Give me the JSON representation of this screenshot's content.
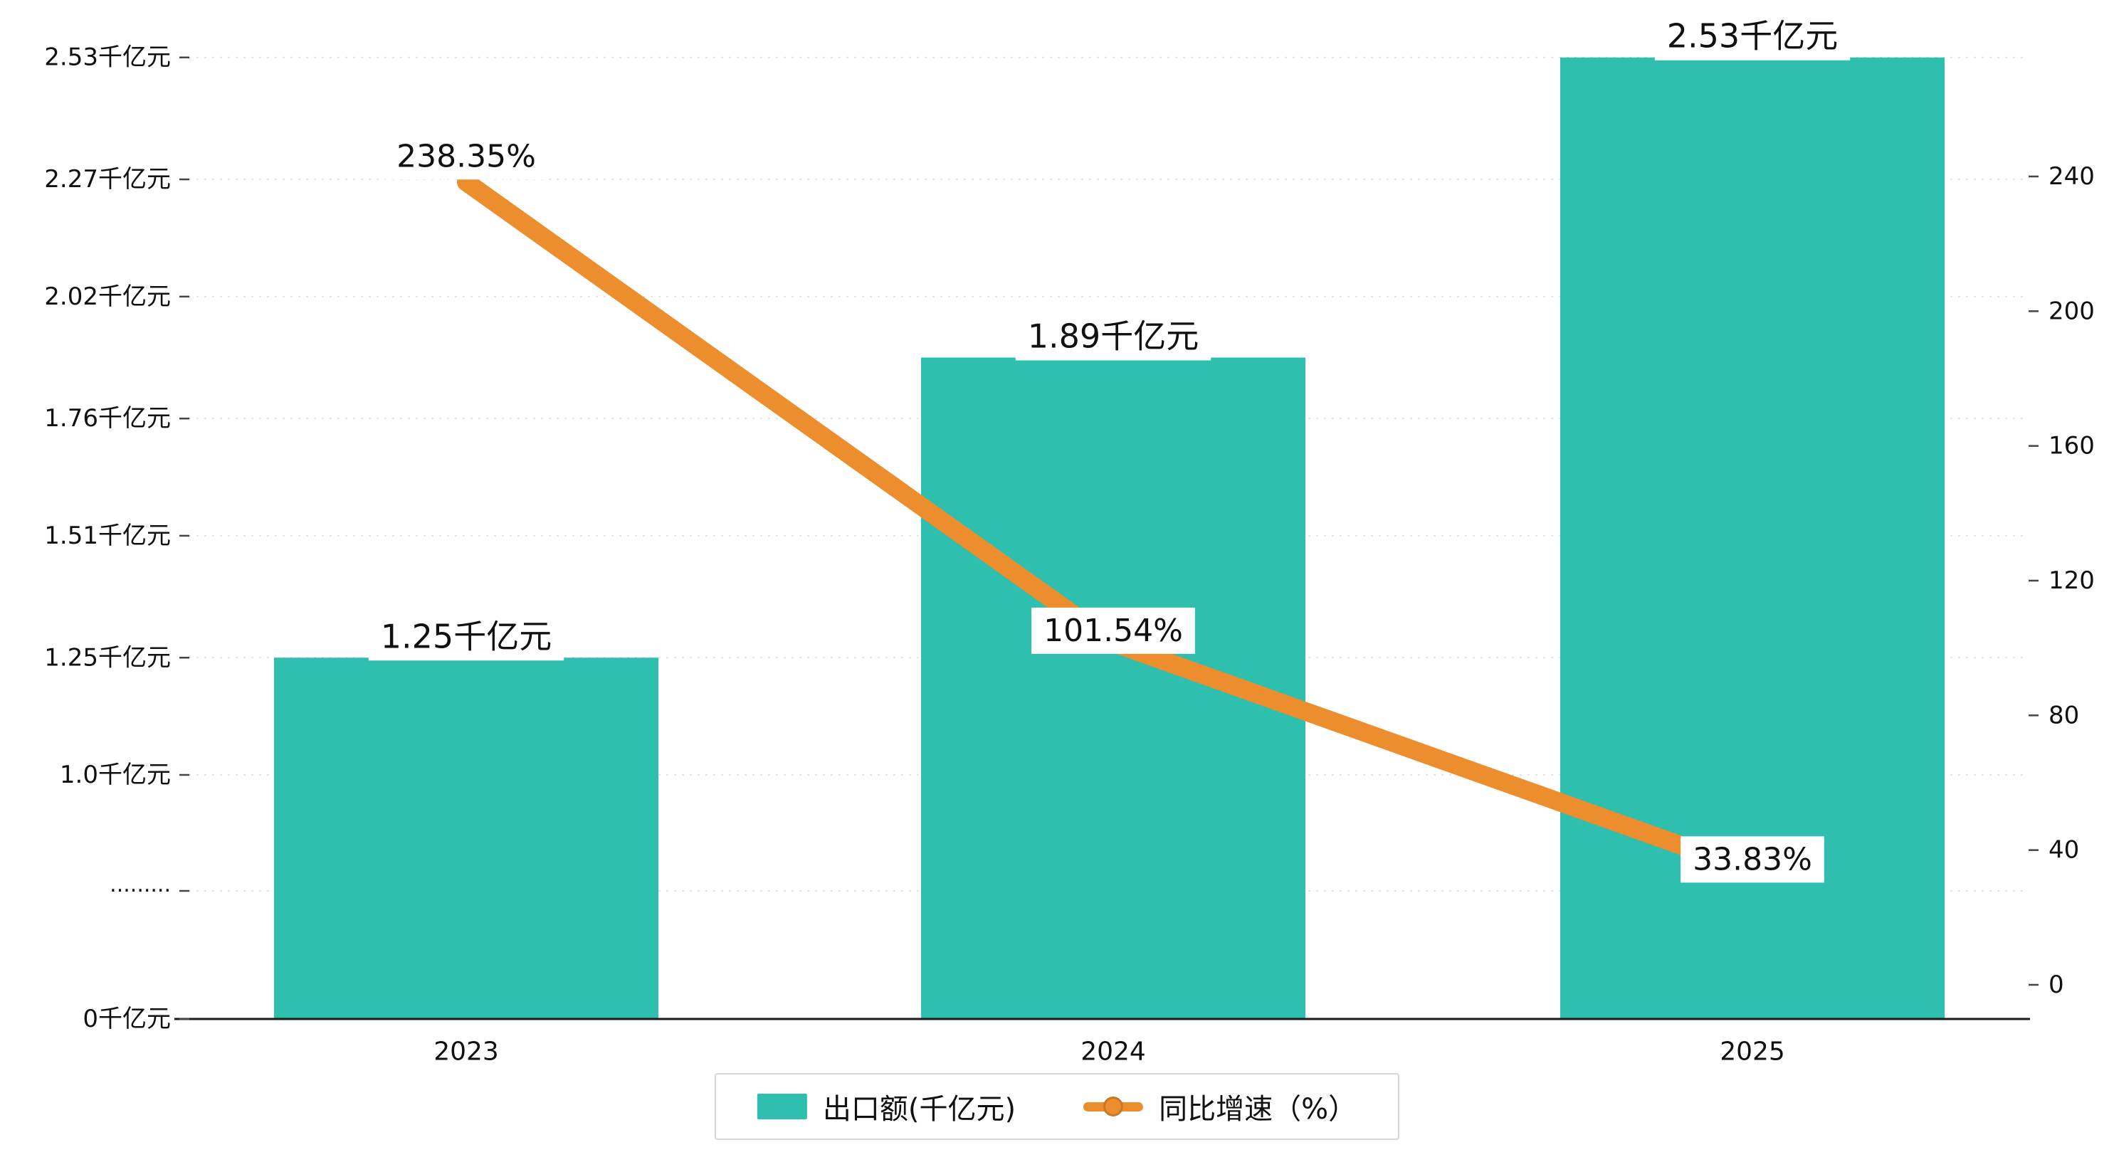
{
  "chart_data": {
    "type": "bar",
    "subtype": "bar+line combo",
    "title": "",
    "categories": [
      "2023",
      "2024",
      "2025"
    ],
    "bar_series": {
      "name": "出口额(千亿元)",
      "values": [
        1.25,
        1.89,
        2.53
      ],
      "value_labels": [
        "1.25千亿元",
        "1.89千亿元",
        "2.53千亿元"
      ],
      "color": "#2fbfae",
      "unit": "千亿元"
    },
    "line_series": {
      "name": "同比增速（%）",
      "values": [
        238.35,
        101.54,
        33.83
      ],
      "value_labels": [
        "238.35%",
        "101.54%",
        "33.83%"
      ],
      "color": "#ec8d2e",
      "unit": "%"
    },
    "left_axis": {
      "broken_axis": true,
      "ticks": [
        {
          "label": "0千亿元",
          "value": 0
        },
        {
          "label": "·········",
          "value": null
        },
        {
          "label": "1.0千亿元",
          "value": 1.0
        },
        {
          "label": "1.25千亿元",
          "value": 1.25
        },
        {
          "label": "1.51千亿元",
          "value": 1.51
        },
        {
          "label": "1.76千亿元",
          "value": 1.76
        },
        {
          "label": "2.02千亿元",
          "value": 2.02
        },
        {
          "label": "2.27千亿元",
          "value": 2.27
        },
        {
          "label": "2.53千亿元",
          "value": 2.53
        }
      ]
    },
    "right_axis": {
      "ticks": [
        0,
        40,
        80,
        120,
        160,
        200,
        240
      ],
      "range": [
        0,
        240
      ]
    },
    "grid": true,
    "legend_position": "bottom",
    "legend": [
      {
        "label": "出口额(千亿元)",
        "marker": "bar",
        "color": "#2fbfae"
      },
      {
        "label": "同比增速（%）",
        "marker": "line",
        "color": "#ec8d2e"
      }
    ]
  }
}
